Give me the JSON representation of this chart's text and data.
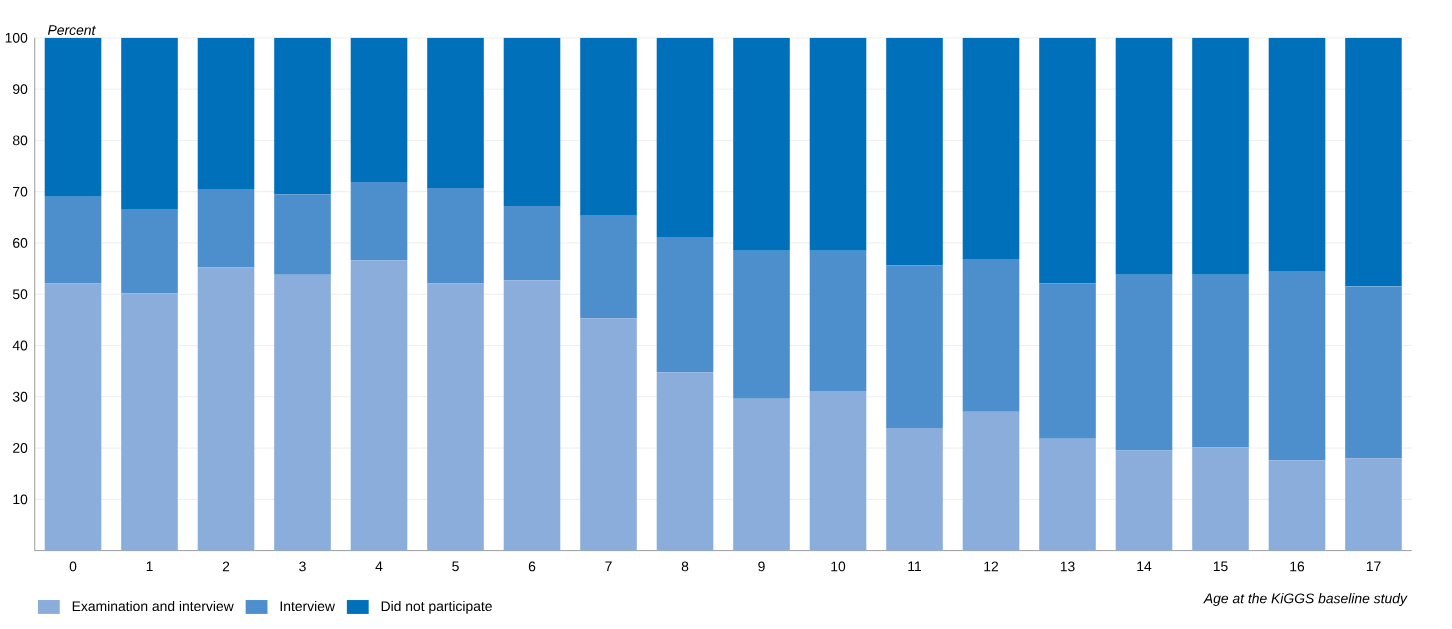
{
  "chart_data": {
    "type": "bar",
    "stacked": true,
    "xlabel": "Age at the KiGGS baseline study",
    "ylabel": "Percent",
    "categories": [
      "0",
      "1",
      "2",
      "3",
      "4",
      "5",
      "6",
      "7",
      "8",
      "9",
      "10",
      "11",
      "12",
      "13",
      "14",
      "15",
      "16",
      "17"
    ],
    "series": [
      {
        "name": "Examination and interview",
        "color": "#8aaddb",
        "values": [
          52.1,
          50.2,
          55.2,
          53.8,
          56.6,
          52.1,
          52.7,
          45.3,
          34.8,
          29.6,
          31.1,
          23.9,
          27.1,
          21.8,
          19.5,
          20.1,
          17.6,
          18.0
        ]
      },
      {
        "name": "Interview",
        "color": "#4d8fcc",
        "values": [
          16.9,
          16.4,
          15.3,
          15.7,
          15.3,
          18.6,
          14.5,
          20.0,
          26.2,
          28.9,
          27.4,
          31.7,
          29.6,
          30.3,
          34.3,
          33.7,
          36.8,
          33.5
        ]
      },
      {
        "name": "Did not participate",
        "color": "#0070bb",
        "values": [
          31.0,
          33.4,
          29.5,
          30.5,
          28.1,
          29.3,
          32.8,
          34.7,
          39.0,
          41.5,
          41.5,
          44.4,
          43.3,
          47.9,
          46.2,
          46.2,
          45.6,
          48.5
        ]
      }
    ],
    "ylim": [
      0,
      100
    ],
    "yticks": [
      10,
      20,
      30,
      40,
      50,
      60,
      70,
      80,
      90,
      100
    ],
    "grid": "y",
    "legend": "bottom left"
  }
}
